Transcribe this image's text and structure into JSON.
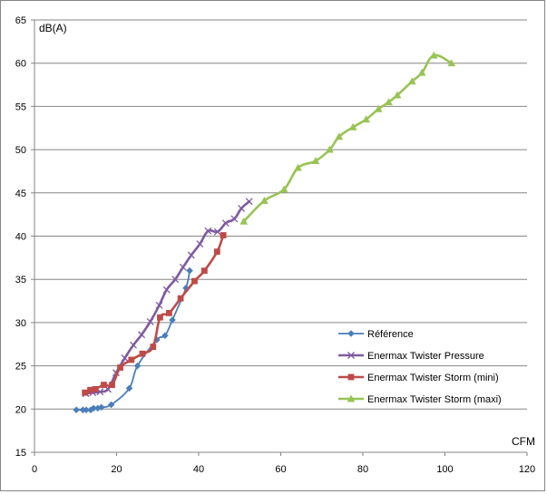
{
  "chart_data": {
    "type": "line",
    "title": "",
    "xlabel": "CFM",
    "ylabel": "dB(A)",
    "xlim": [
      0,
      120
    ],
    "ylim": [
      15,
      65
    ],
    "x_ticks": [
      0,
      20,
      40,
      60,
      80,
      100,
      120
    ],
    "y_ticks": [
      15,
      20,
      25,
      30,
      35,
      40,
      45,
      50,
      55,
      60,
      65
    ],
    "grid": "horizontal",
    "legend": "right",
    "series": [
      {
        "name": "Référence",
        "color": "#4a7ebb",
        "marker": "diamond",
        "x": [
          10.2,
          11.8,
          12.6,
          13.7,
          14.4,
          15.4,
          16.3,
          18.7,
          23.1,
          25.1,
          29.8,
          31.8,
          33.6,
          36.9,
          37.8
        ],
        "y": [
          19.9,
          19.9,
          19.9,
          19.9,
          20.1,
          20.1,
          20.2,
          20.5,
          22.4,
          25.0,
          28.0,
          28.5,
          30.3,
          34.0,
          36.0
        ]
      },
      {
        "name": "Enermax Twister Pressure",
        "color": "#7f5aa2",
        "marker": "x",
        "x": [
          12.5,
          14.2,
          16.0,
          17.9,
          19.9,
          22.0,
          24.1,
          26.1,
          28.2,
          30.4,
          32.2,
          34.3,
          36.2,
          38.2,
          40.3,
          42.3,
          44.6,
          46.6,
          48.7,
          50.4,
          52.3
        ],
        "y": [
          21.8,
          21.9,
          22.0,
          22.3,
          24.2,
          25.9,
          27.4,
          28.6,
          30.1,
          32.0,
          33.8,
          35.0,
          36.4,
          37.8,
          39.1,
          40.6,
          40.5,
          41.5,
          42.0,
          43.2,
          44.0
        ]
      },
      {
        "name": "Enermax Twister Storm (mini)",
        "color": "#be4b48",
        "marker": "square",
        "x": [
          12.3,
          13.6,
          14.8,
          16.9,
          18.9,
          20.9,
          23.6,
          26.3,
          28.9,
          30.6,
          32.8,
          35.6,
          39.0,
          41.4,
          44.5,
          46.0
        ],
        "y": [
          21.9,
          22.2,
          22.3,
          22.8,
          22.8,
          24.8,
          25.7,
          26.4,
          27.2,
          30.6,
          31.1,
          32.8,
          34.8,
          36.0,
          38.2,
          40.1
        ]
      },
      {
        "name": "Enermax Twister Storm (maxi)",
        "color": "#98c454",
        "marker": "triangle",
        "x": [
          51.0,
          56.0,
          60.8,
          64.2,
          68.5,
          71.9,
          74.2,
          77.6,
          80.8,
          83.8,
          86.3,
          88.4,
          92.0,
          94.4,
          97.3,
          101.6
        ],
        "y": [
          41.7,
          44.1,
          45.4,
          47.9,
          48.7,
          50.0,
          51.5,
          52.6,
          53.5,
          54.7,
          55.5,
          56.3,
          57.9,
          58.9,
          60.9,
          60.0
        ]
      }
    ]
  }
}
